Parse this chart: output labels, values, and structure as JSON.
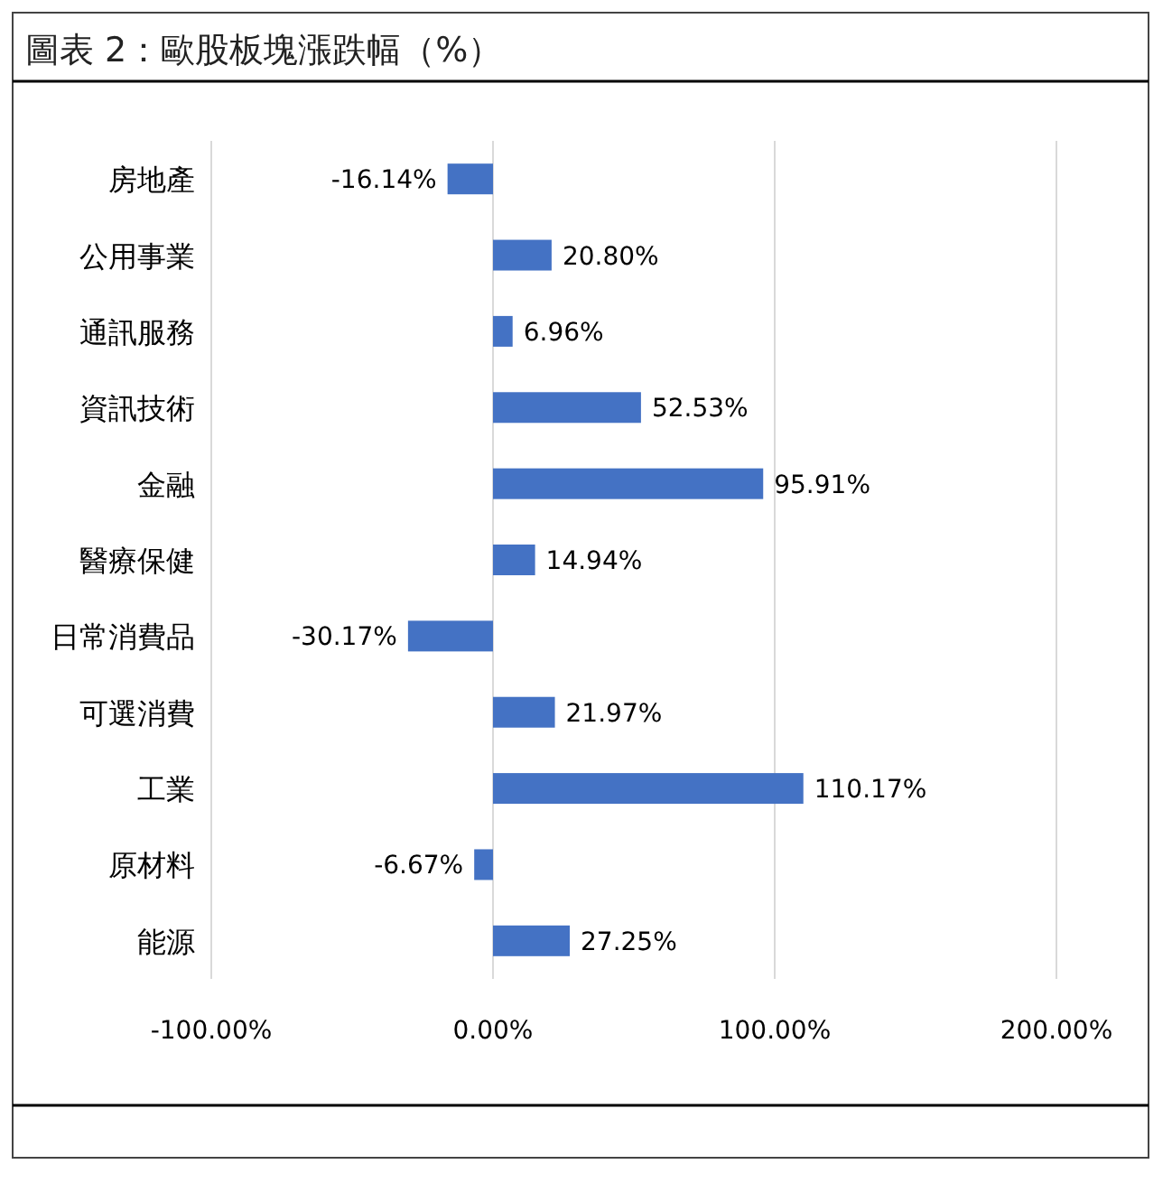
{
  "chart_data": {
    "type": "bar",
    "orientation": "horizontal",
    "title": "圖表 2：歐股板塊漲跌幅（%）",
    "categories": [
      "房地產",
      "公用事業",
      "通訊服務",
      "資訊技術",
      "金融",
      "醫療保健",
      "日常消費品",
      "可選消費",
      "工業",
      "原材料",
      "能源"
    ],
    "values": [
      -16.14,
      20.8,
      6.96,
      52.53,
      95.91,
      14.94,
      -30.17,
      21.97,
      110.17,
      -6.67,
      27.25
    ],
    "value_labels": [
      "-16.14%",
      "20.80%",
      "6.96%",
      "52.53%",
      "95.91%",
      "14.94%",
      "-30.17%",
      "21.97%",
      "110.17%",
      "-6.67%",
      "27.25%"
    ],
    "color": "#4472c4",
    "xlim": [
      -100,
      200
    ],
    "xticks": [
      {
        "value": -100,
        "label": "-100.00%"
      },
      {
        "value": 0,
        "label": "0.00%"
      },
      {
        "value": 100,
        "label": "100.00%"
      },
      {
        "value": 200,
        "label": "200.00%"
      }
    ],
    "grid": "x"
  }
}
